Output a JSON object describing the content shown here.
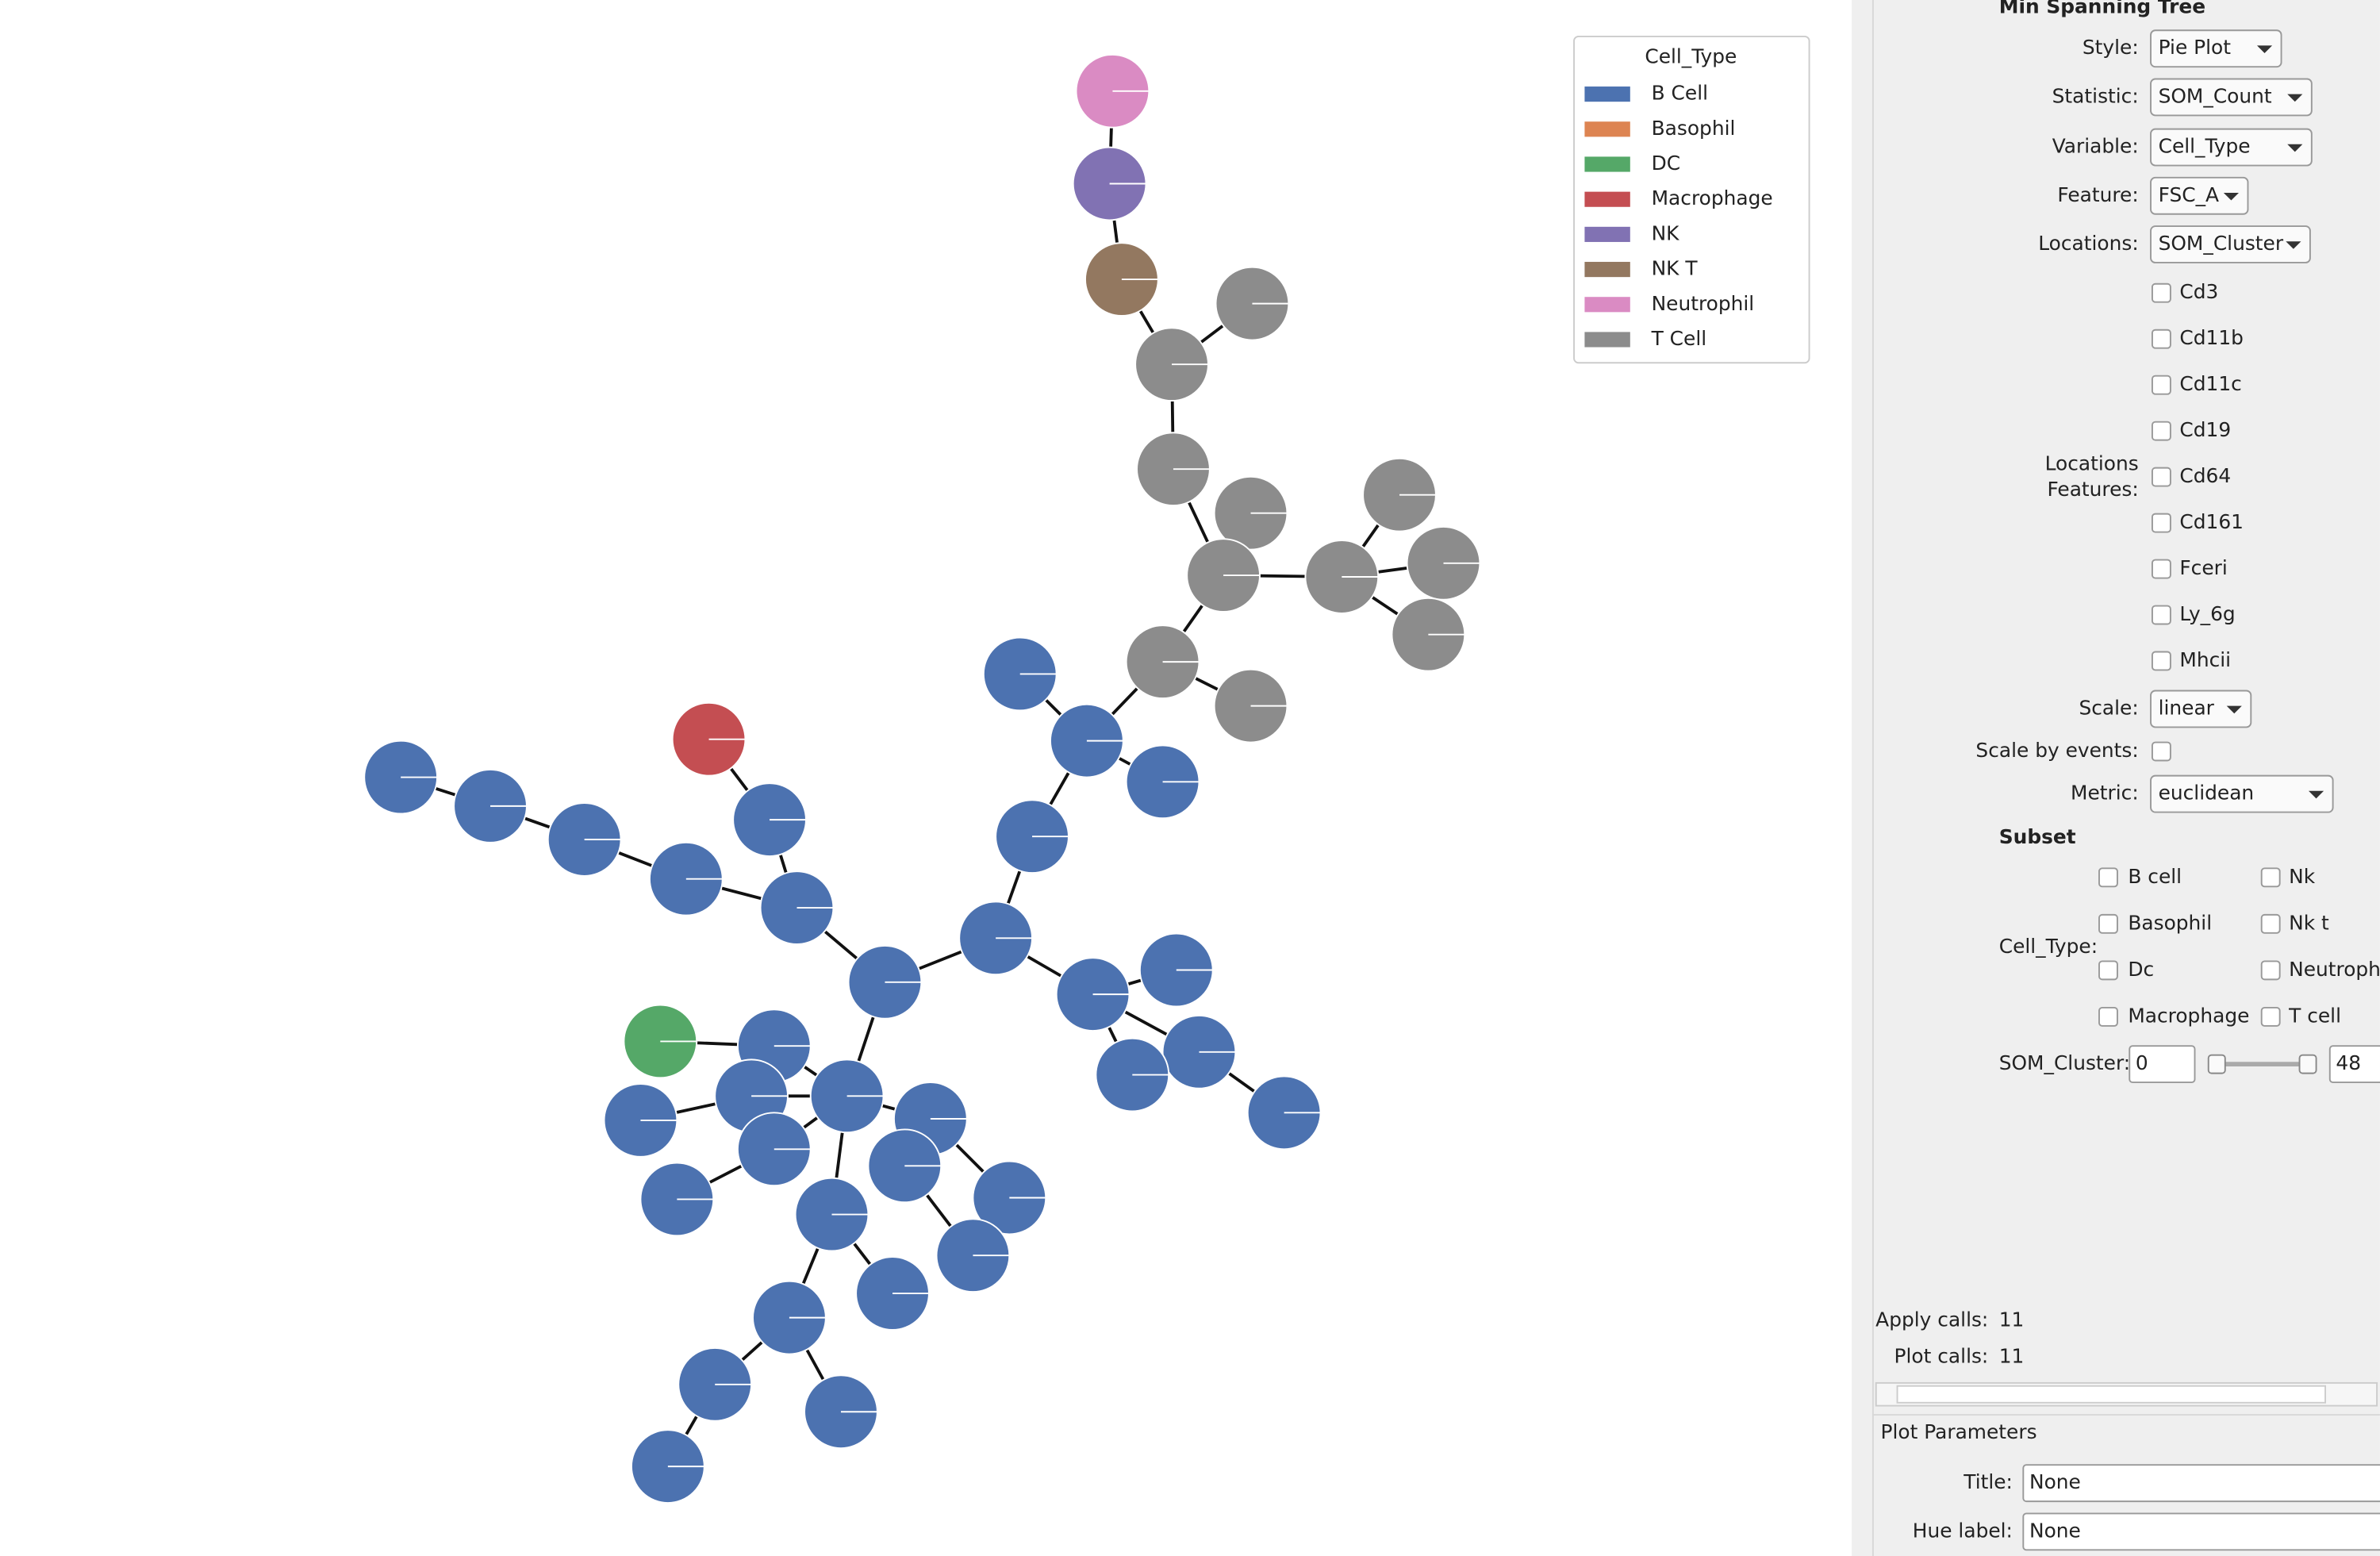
{
  "legend": {
    "title": "Cell_Type",
    "items": [
      {
        "label": "B Cell",
        "color": "#4c72b0"
      },
      {
        "label": "Basophil",
        "color": "#dd8452"
      },
      {
        "label": "DC",
        "color": "#55a868"
      },
      {
        "label": "Macrophage",
        "color": "#c44e52"
      },
      {
        "label": "NK",
        "color": "#8172b3"
      },
      {
        "label": "NK T",
        "color": "#937860"
      },
      {
        "label": "Neutrophil",
        "color": "#da8bc3"
      },
      {
        "label": "T Cell",
        "color": "#8c8c8c"
      }
    ]
  },
  "panel": {
    "heading": "Min Spanning Tree",
    "dropdowns": [
      {
        "label": "Style:",
        "value": "Pie Plot"
      },
      {
        "label": "Statistic:",
        "value": "SOM_Count"
      },
      {
        "label": "Variable:",
        "value": "Cell_Type"
      },
      {
        "label": "Feature:",
        "value": "FSC_A"
      },
      {
        "label": "Locations:",
        "value": "SOM_Cluster"
      }
    ],
    "features_label": [
      "Locations",
      "Features:"
    ],
    "features": [
      "Cd3",
      "Cd11b",
      "Cd11c",
      "Cd19",
      "Cd64",
      "Cd161",
      "Fceri",
      "Ly_6g",
      "Mhcii"
    ],
    "scale": {
      "label": "Scale:",
      "value": "linear"
    },
    "scale_by_events": "Scale by events:",
    "metric": {
      "label": "Metric:",
      "value": "euclidean"
    },
    "subset": {
      "heading": "Subset",
      "label": "Cell_Type:",
      "options": [
        "B cell",
        "Basophil",
        "Dc",
        "Macrophage",
        "Nk",
        "Nk t",
        "Neutroph",
        "T cell"
      ]
    },
    "som_cluster": {
      "label": "SOM_Cluster:",
      "min": "0",
      "max": "48"
    },
    "apply_calls": {
      "label": "Apply calls:",
      "value": "11"
    },
    "plot_calls": {
      "label": "Plot calls:",
      "value": "11"
    },
    "plot_parameters": {
      "heading": "Plot Parameters",
      "fields": [
        {
          "label": "Title:",
          "placeholder": "None"
        },
        {
          "label": "Hue label:",
          "placeholder": "None"
        }
      ]
    }
  }
}
